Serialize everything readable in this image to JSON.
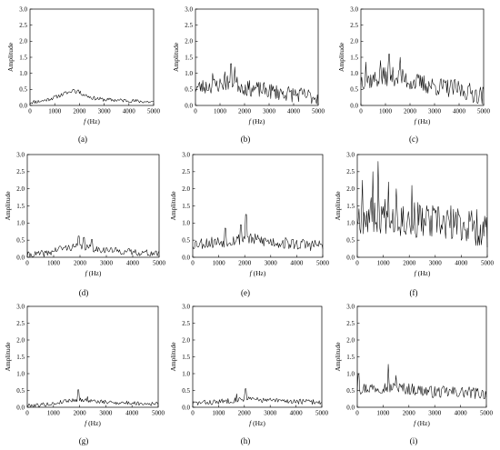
{
  "chart_data": [
    {
      "id": "a",
      "panel_label": "(a)",
      "type": "line",
      "xlabel_italic": "f",
      "xlabel_unit": "(Hz)",
      "ylabel": "Amplitude",
      "xlim": [
        0,
        5000
      ],
      "ylim": [
        0,
        3.0
      ],
      "xticks": [
        "0",
        "1000",
        "2000",
        "3000",
        "4000",
        "5000"
      ],
      "yticks": [
        "0.0",
        "0.5",
        "1.0",
        "1.5",
        "2.0",
        "2.5",
        "3.0"
      ],
      "envelope": [
        [
          0,
          0.1
        ],
        [
          500,
          0.14
        ],
        [
          1000,
          0.25
        ],
        [
          1500,
          0.4
        ],
        [
          1800,
          0.45
        ],
        [
          2000,
          0.4
        ],
        [
          2500,
          0.24
        ],
        [
          3000,
          0.18
        ],
        [
          4000,
          0.15
        ],
        [
          5000,
          0.1
        ]
      ],
      "noise": 0.06,
      "peaks": [
        [
          1750,
          0.5
        ],
        [
          1950,
          0.48
        ]
      ],
      "seed": 11
    },
    {
      "id": "b",
      "panel_label": "(b)",
      "type": "line",
      "xlabel_italic": "f",
      "xlabel_unit": "(Hz)",
      "ylabel": "Amplitude",
      "xlim": [
        0,
        5000
      ],
      "ylim": [
        0,
        3.0
      ],
      "xticks": [
        "0",
        "1000",
        "2000",
        "3000",
        "4000",
        "5000"
      ],
      "yticks": [
        "0.0",
        "0.5",
        "1.0",
        "1.5",
        "2.0",
        "2.5",
        "3.0"
      ],
      "envelope": [
        [
          0,
          0.55
        ],
        [
          500,
          0.6
        ],
        [
          1000,
          0.65
        ],
        [
          1500,
          0.75
        ],
        [
          2000,
          0.55
        ],
        [
          3000,
          0.45
        ],
        [
          4000,
          0.35
        ],
        [
          5000,
          0.25
        ]
      ],
      "noise": 0.25,
      "peaks": [
        [
          1450,
          1.3
        ],
        [
          1600,
          1.2
        ],
        [
          1200,
          1.05
        ],
        [
          700,
          1.0
        ]
      ],
      "seed": 23
    },
    {
      "id": "c",
      "panel_label": "(c)",
      "type": "line",
      "xlabel_italic": "f",
      "xlabel_unit": "(Hz)",
      "ylabel": "Amplitude",
      "xlim": [
        0,
        5000
      ],
      "ylim": [
        0,
        3.0
      ],
      "xticks": [
        "0",
        "1000",
        "2000",
        "3000",
        "4000",
        "5000"
      ],
      "yticks": [
        "0.0",
        "0.5",
        "1.0",
        "1.5",
        "2.0",
        "2.5",
        "3.0"
      ],
      "envelope": [
        [
          0,
          0.8
        ],
        [
          500,
          0.8
        ],
        [
          1000,
          0.9
        ],
        [
          1500,
          0.9
        ],
        [
          2000,
          0.75
        ],
        [
          3000,
          0.6
        ],
        [
          4000,
          0.5
        ],
        [
          5000,
          0.3
        ]
      ],
      "noise": 0.3,
      "peaks": [
        [
          1150,
          1.6
        ],
        [
          1600,
          1.5
        ],
        [
          800,
          1.4
        ],
        [
          200,
          1.35
        ]
      ],
      "seed": 37
    },
    {
      "id": "d",
      "panel_label": "(d)",
      "type": "line",
      "xlabel_italic": "f",
      "xlabel_unit": "(Hz)",
      "ylabel": "Amplitude",
      "xlim": [
        0,
        5000
      ],
      "ylim": [
        0,
        3.0
      ],
      "xticks": [
        "0",
        "1000",
        "2000",
        "3000",
        "4000",
        "5000"
      ],
      "yticks": [
        "0.0",
        "0.5",
        "1.0",
        "1.5",
        "2.0",
        "2.5",
        "3.0"
      ],
      "envelope": [
        [
          0,
          0.06
        ],
        [
          800,
          0.12
        ],
        [
          1200,
          0.25
        ],
        [
          2000,
          0.32
        ],
        [
          2500,
          0.25
        ],
        [
          3500,
          0.18
        ],
        [
          5000,
          0.1
        ]
      ],
      "noise": 0.1,
      "peaks": [
        [
          1950,
          0.62
        ],
        [
          2150,
          0.58
        ],
        [
          2450,
          0.52
        ]
      ],
      "seed": 41
    },
    {
      "id": "e",
      "panel_label": "(e)",
      "type": "line",
      "xlabel_italic": "f",
      "xlabel_unit": "(Hz)",
      "ylabel": "Amplitude",
      "xlim": [
        0,
        5000
      ],
      "ylim": [
        0,
        3.0
      ],
      "xticks": [
        "0",
        "1000",
        "2000",
        "3000",
        "4000",
        "5000"
      ],
      "yticks": [
        "0.0",
        "0.5",
        "1.0",
        "1.5",
        "2.0",
        "2.5",
        "3.0"
      ],
      "envelope": [
        [
          0,
          0.4
        ],
        [
          1000,
          0.45
        ],
        [
          2000,
          0.55
        ],
        [
          3000,
          0.45
        ],
        [
          4000,
          0.38
        ],
        [
          5000,
          0.35
        ]
      ],
      "noise": 0.18,
      "peaks": [
        [
          2050,
          1.25
        ],
        [
          1850,
          0.95
        ],
        [
          1250,
          0.85
        ]
      ],
      "seed": 53
    },
    {
      "id": "f",
      "panel_label": "(f)",
      "type": "line",
      "xlabel_italic": "f",
      "xlabel_unit": "(Hz)",
      "ylabel": "Amplitude",
      "xlim": [
        0,
        5000
      ],
      "ylim": [
        0,
        3.0
      ],
      "xticks": [
        "0",
        "1000",
        "2000",
        "3000",
        "4000",
        "5000"
      ],
      "yticks": [
        "0.0",
        "0.5",
        "1.0",
        "1.5",
        "2.0",
        "2.5",
        "3.0"
      ],
      "envelope": [
        [
          0,
          1.2
        ],
        [
          1000,
          1.25
        ],
        [
          2000,
          1.1
        ],
        [
          3000,
          1.0
        ],
        [
          4000,
          0.95
        ],
        [
          5000,
          0.8
        ]
      ],
      "noise": 0.55,
      "peaks": [
        [
          800,
          2.8
        ],
        [
          600,
          2.5
        ],
        [
          200,
          2.25
        ],
        [
          1200,
          2.2
        ],
        [
          2100,
          2.1
        ],
        [
          1500,
          2.0
        ]
      ],
      "seed": 67
    },
    {
      "id": "g",
      "panel_label": "(g)",
      "type": "line",
      "xlabel_italic": "f",
      "xlabel_unit": "(Hz)",
      "ylabel": "Amplitude",
      "xlim": [
        0,
        5000
      ],
      "ylim": [
        0,
        3.0
      ],
      "xticks": [
        "0",
        "1000",
        "2000",
        "3000",
        "4000",
        "5000"
      ],
      "yticks": [
        "0.0",
        "0.5",
        "1.0",
        "1.5",
        "2.0",
        "2.5",
        "3.0"
      ],
      "envelope": [
        [
          0,
          0.05
        ],
        [
          1000,
          0.1
        ],
        [
          1500,
          0.2
        ],
        [
          2000,
          0.22
        ],
        [
          3000,
          0.15
        ],
        [
          5000,
          0.1
        ]
      ],
      "noise": 0.06,
      "peaks": [
        [
          1950,
          0.52
        ],
        [
          2300,
          0.32
        ]
      ],
      "seed": 79
    },
    {
      "id": "h",
      "panel_label": "(h)",
      "type": "line",
      "xlabel_italic": "f",
      "xlabel_unit": "(Hz)",
      "ylabel": "Amplitude",
      "xlim": [
        0,
        5000
      ],
      "ylim": [
        0,
        3.0
      ],
      "xticks": [
        "0",
        "1000",
        "2000",
        "3000",
        "4000",
        "5000"
      ],
      "yticks": [
        "0.0",
        "0.5",
        "1.0",
        "1.5",
        "2.0",
        "2.5",
        "3.0"
      ],
      "envelope": [
        [
          0,
          0.12
        ],
        [
          1000,
          0.16
        ],
        [
          2000,
          0.25
        ],
        [
          3000,
          0.2
        ],
        [
          5000,
          0.15
        ]
      ],
      "noise": 0.08,
      "peaks": [
        [
          2050,
          0.55
        ],
        [
          1700,
          0.4
        ]
      ],
      "seed": 83
    },
    {
      "id": "i",
      "panel_label": "(i)",
      "type": "line",
      "xlabel_italic": "f",
      "xlabel_unit": "(Hz)",
      "ylabel": "Amplitude",
      "xlim": [
        0,
        5000
      ],
      "ylim": [
        0,
        3.0
      ],
      "xticks": [
        "0",
        "1000",
        "2000",
        "3000",
        "4000",
        "5000"
      ],
      "yticks": [
        "0.0",
        "0.5",
        "1.0",
        "1.5",
        "2.0",
        "2.5",
        "3.0"
      ],
      "envelope": [
        [
          0,
          0.55
        ],
        [
          1000,
          0.6
        ],
        [
          2000,
          0.55
        ],
        [
          3000,
          0.45
        ],
        [
          4000,
          0.45
        ],
        [
          5000,
          0.4
        ]
      ],
      "noise": 0.18,
      "peaks": [
        [
          1200,
          1.28
        ],
        [
          50,
          0.98
        ],
        [
          1500,
          0.95
        ]
      ],
      "seed": 97
    }
  ]
}
